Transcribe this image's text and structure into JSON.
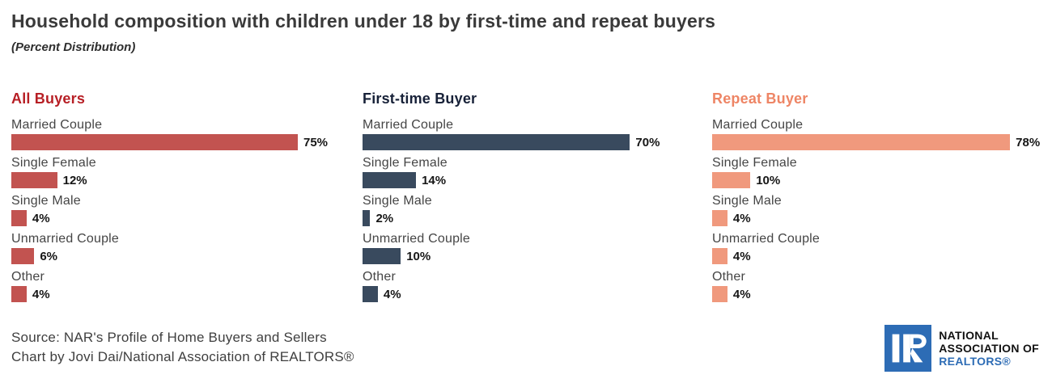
{
  "page": {
    "title": "Household composition with children under 18 by first-time and repeat buyers",
    "subtitle": "(Percent Distribution)"
  },
  "chart_data": {
    "type": "bar",
    "orientation": "horizontal",
    "value_suffix": "%",
    "xlim": [
      0,
      100
    ],
    "grid": false,
    "categories": [
      "Married Couple",
      "Single Female",
      "Single Male",
      "Unmarried Couple",
      "Other"
    ],
    "groups": [
      {
        "name": "All Buyers",
        "header_color": "#b71f25",
        "bar_color": "#c25350",
        "values": [
          75,
          12,
          4,
          6,
          4
        ]
      },
      {
        "name": "First-time Buyer",
        "header_color": "#172138",
        "bar_color": "#394a5e",
        "values": [
          70,
          14,
          2,
          10,
          4
        ]
      },
      {
        "name": "Repeat Buyer",
        "header_color": "#ee8565",
        "bar_color": "#f0997d",
        "values": [
          78,
          10,
          4,
          4,
          4
        ]
      }
    ]
  },
  "footer": {
    "source_line1": "Source: NAR's Profile of Home Buyers and Sellers",
    "source_line2": "Chart by Jovi Dai/National Association of REALTORS®",
    "logo": {
      "line1": "NATIONAL",
      "line2": "ASSOCIATION OF",
      "line3": "REALTORS®",
      "brand_blue": "#2d6cb5"
    }
  }
}
